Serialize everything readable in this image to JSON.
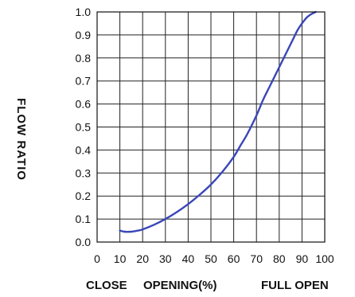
{
  "chart_data": {
    "type": "line",
    "title": "",
    "ylabel": "FLOW RATIO",
    "xlabel_left": "CLOSE",
    "xlabel_center": "OPENING(%)",
    "xlabel_right": "FULL OPEN",
    "xlim": [
      0,
      100
    ],
    "ylim": [
      0.0,
      1.0
    ],
    "x_ticks": [
      "0",
      "10",
      "20",
      "30",
      "40",
      "50",
      "60",
      "70",
      "80",
      "90",
      "100"
    ],
    "y_ticks": [
      "0.0",
      "0.1",
      "0.2",
      "0.3",
      "0.4",
      "0.5",
      "0.6",
      "0.7",
      "0.8",
      "0.9",
      "1.0"
    ],
    "grid": true,
    "series_color": "#3a46b8",
    "series": [
      {
        "x": [
          10,
          12,
          15,
          18,
          20,
          25,
          30,
          35,
          40,
          45,
          50,
          55,
          60,
          63,
          66,
          70,
          73,
          76,
          80,
          83,
          86,
          88,
          90,
          92,
          94,
          96
        ],
        "y": [
          0.05,
          0.045,
          0.045,
          0.05,
          0.055,
          0.075,
          0.1,
          0.13,
          0.165,
          0.205,
          0.25,
          0.305,
          0.37,
          0.42,
          0.47,
          0.55,
          0.62,
          0.68,
          0.76,
          0.82,
          0.88,
          0.92,
          0.95,
          0.975,
          0.99,
          1.0
        ]
      }
    ]
  }
}
